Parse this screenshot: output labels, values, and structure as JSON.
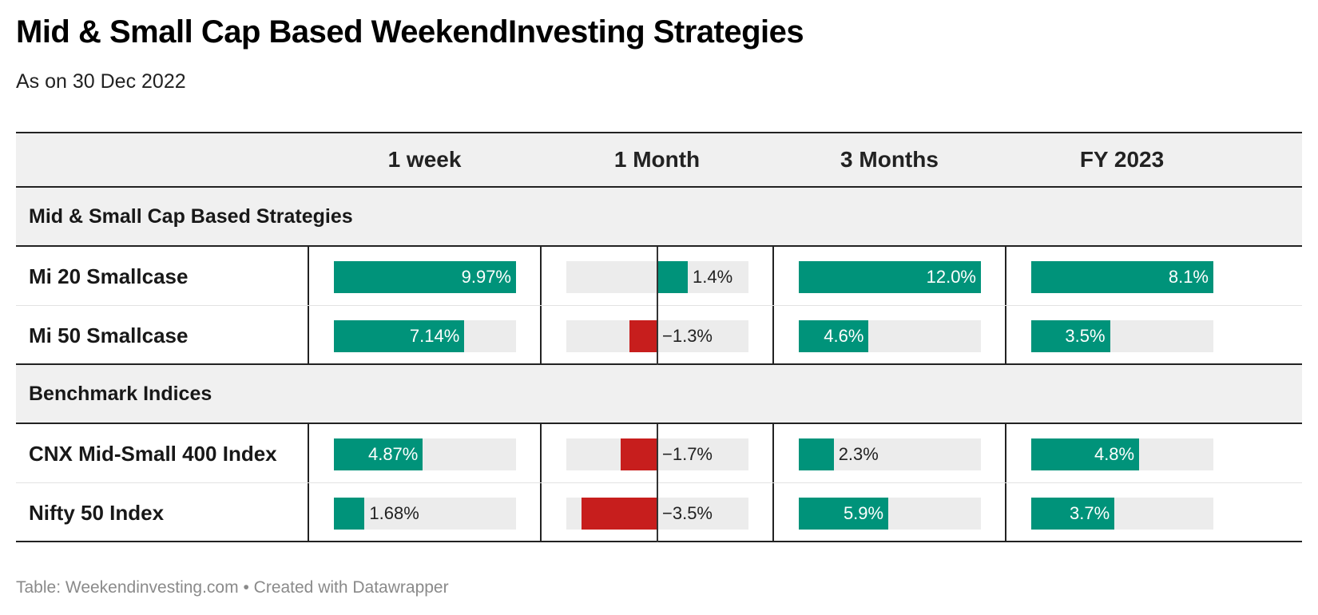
{
  "title": "Mid & Small Cap Based WeekendInvesting Strategies",
  "subtitle": "As on 30 Dec 2022",
  "footer": {
    "source": "Table: Weekendinvesting.com",
    "separator": "•",
    "credit": "Created with Datawrapper"
  },
  "colors": {
    "positive": "#00937a",
    "negative": "#c71e1d",
    "bar_background": "#ececec",
    "header_background": "#f0f0f0"
  },
  "chart_data": {
    "type": "table",
    "columns": [
      "1 week",
      "1 Month",
      "3 Months",
      "FY 2023"
    ],
    "column_ranges": [
      [
        0,
        9.97
      ],
      [
        -4.2,
        4.2
      ],
      [
        0,
        12.0
      ],
      [
        0,
        8.1
      ]
    ],
    "groups": [
      {
        "label": "Mid & Small Cap Based Strategies",
        "rows": [
          {
            "name": "Mi 20 Smallcase",
            "values": [
              9.97,
              1.4,
              12.0,
              8.1
            ],
            "labels": [
              "9.97%",
              "1.4%",
              "12.0%",
              "8.1%"
            ]
          },
          {
            "name": "Mi 50 Smallcase",
            "values": [
              7.14,
              -1.3,
              4.6,
              3.5
            ],
            "labels": [
              "7.14%",
              "−1.3%",
              "4.6%",
              "3.5%"
            ]
          }
        ]
      },
      {
        "label": "Benchmark Indices",
        "rows": [
          {
            "name": "CNX Mid-Small 400 Index",
            "values": [
              4.87,
              -1.7,
              2.3,
              4.8
            ],
            "labels": [
              "4.87%",
              "−1.7%",
              "2.3%",
              "4.8%"
            ]
          },
          {
            "name": "Nifty 50 Index",
            "values": [
              1.68,
              -3.5,
              5.9,
              3.7
            ],
            "labels": [
              "1.68%",
              "−3.5%",
              "5.9%",
              "3.7%"
            ]
          }
        ]
      }
    ]
  }
}
